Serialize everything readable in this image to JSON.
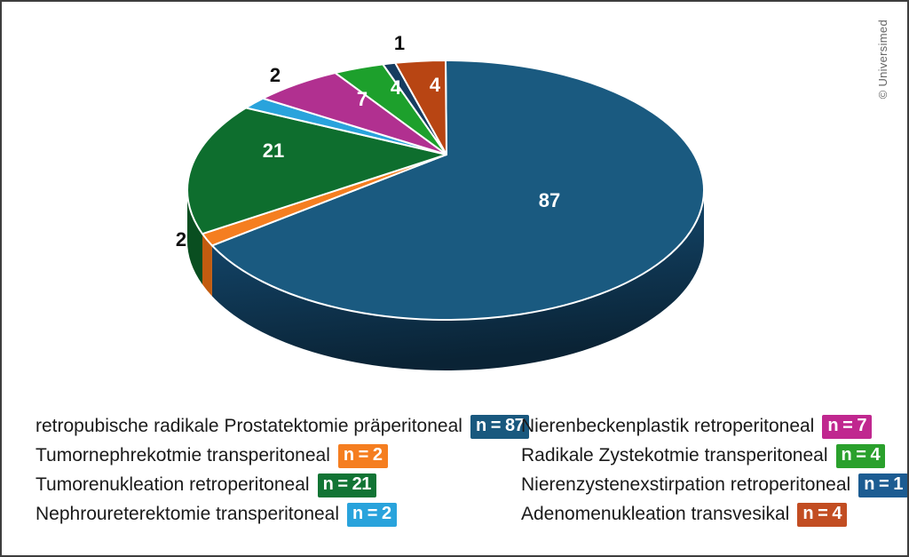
{
  "credit": "© Universimed",
  "chart_data": {
    "type": "pie",
    "style": "3d",
    "title": "",
    "total": 128,
    "legend_position": "bottom",
    "legend_columns": 2,
    "slices": [
      {
        "label": "retropubische radikale Prostatektomie präperitoneal",
        "value": 87,
        "badge": "n = 87",
        "color": "#1a5a80",
        "side_color": "#0d3049",
        "badge_color": "#19587e",
        "value_label_placement": "inside"
      },
      {
        "label": "Tumornephrekotmie transperitoneal",
        "value": 2,
        "badge": "n = 2",
        "color": "#f57e20",
        "side_color": "#c25c10",
        "badge_color": "#f57e20",
        "value_label_placement": "outside"
      },
      {
        "label": "Tumorenukleation retroperitoneal",
        "value": 21,
        "badge": "n = 21",
        "color": "#0e6e2e",
        "side_color": "#094e20",
        "badge_color": "#117434",
        "value_label_placement": "inside"
      },
      {
        "label": "Nephroureterektomie transperitoneal",
        "value": 2,
        "badge": "n = 2",
        "color": "#29a3dc",
        "side_color": "#1b7cab",
        "badge_color": "#29a3dc",
        "value_label_placement": "outside"
      },
      {
        "label": "Nierenbeckenplastik retroperitoneal",
        "value": 7,
        "badge": "n = 7",
        "color": "#b13090",
        "side_color": "#8a2470",
        "badge_color": "#c0278f",
        "value_label_placement": "inside"
      },
      {
        "label": "Radikale Zystekotmie transperitoneal",
        "value": 4,
        "badge": "n = 4",
        "color": "#1da02c",
        "side_color": "#157a20",
        "badge_color": "#2aa02c",
        "value_label_placement": "inside"
      },
      {
        "label": "Nierenzystenexstirpation retroperitoneal",
        "value": 1,
        "badge": "n = 1",
        "color": "#163c60",
        "side_color": "#0e2a45",
        "badge_color": "#1c5c92",
        "value_label_placement": "outside"
      },
      {
        "label": "Adenomenukleation transvesikal",
        "value": 4,
        "badge": "n = 4",
        "color": "#b84513",
        "side_color": "#8f350e",
        "badge_color": "#c24d22",
        "value_label_placement": "inside"
      }
    ]
  }
}
